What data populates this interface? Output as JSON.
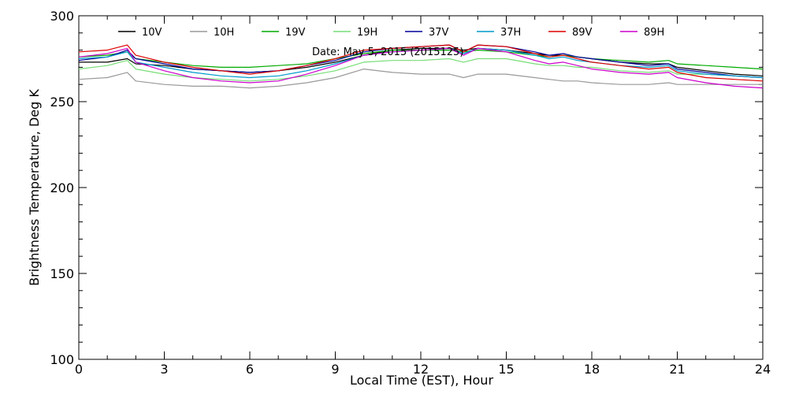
{
  "chart_data": {
    "type": "line",
    "title": "",
    "xlabel": "Local Time (EST), Hour",
    "ylabel": "Brightness Temperature, Deg K",
    "annotation": "Date: May 5, 2015 (2015125)",
    "xlim": [
      0,
      24
    ],
    "ylim": [
      100,
      300
    ],
    "x_ticks": [
      0,
      3,
      6,
      9,
      12,
      15,
      18,
      21,
      24
    ],
    "y_ticks": [
      100,
      150,
      200,
      250,
      300
    ],
    "grid": false,
    "legend_placement": "top",
    "x": [
      0,
      1,
      1.7,
      2,
      3,
      4,
      5,
      6,
      7,
      8,
      9,
      10,
      11,
      12,
      13,
      13.5,
      14,
      15,
      16,
      16.5,
      17,
      17.5,
      18,
      19,
      20,
      20.7,
      21,
      22,
      23,
      24
    ],
    "series": [
      {
        "name": "10V",
        "color": "#000000",
        "values": [
          273,
          273,
          275,
          272,
          271,
          269,
          268,
          267,
          268,
          270,
          273,
          277,
          280,
          281,
          281,
          280,
          281,
          280,
          278,
          277,
          277,
          276,
          275,
          273,
          272,
          272,
          270,
          268,
          266,
          265
        ]
      },
      {
        "name": "10H",
        "color": "#999999",
        "values": [
          263,
          264,
          267,
          262,
          260,
          259,
          259,
          258,
          259,
          261,
          264,
          269,
          267,
          266,
          266,
          264,
          266,
          266,
          264,
          263,
          262,
          262,
          261,
          260,
          260,
          261,
          260,
          260,
          260,
          260
        ]
      },
      {
        "name": "19V",
        "color": "#00aa00",
        "values": [
          276,
          277,
          279,
          275,
          273,
          271,
          270,
          270,
          271,
          272,
          275,
          278,
          280,
          280,
          280,
          279,
          280,
          279,
          277,
          276,
          277,
          276,
          275,
          274,
          273,
          274,
          272,
          271,
          270,
          269
        ]
      },
      {
        "name": "19H",
        "color": "#77dd77",
        "values": [
          269,
          271,
          274,
          269,
          266,
          264,
          263,
          262,
          263,
          265,
          268,
          273,
          274,
          274,
          275,
          273,
          275,
          275,
          272,
          271,
          271,
          270,
          270,
          268,
          267,
          268,
          266,
          266,
          265,
          264
        ]
      },
      {
        "name": "37V",
        "color": "#000099",
        "values": [
          274,
          276,
          280,
          275,
          272,
          269,
          268,
          267,
          268,
          271,
          274,
          279,
          281,
          282,
          283,
          279,
          283,
          282,
          279,
          277,
          278,
          276,
          275,
          273,
          271,
          272,
          269,
          267,
          265,
          264
        ]
      },
      {
        "name": "37H",
        "color": "#0099cc",
        "values": [
          275,
          276,
          279,
          273,
          270,
          267,
          265,
          264,
          265,
          268,
          272,
          277,
          279,
          280,
          281,
          278,
          281,
          280,
          277,
          275,
          276,
          274,
          273,
          271,
          270,
          271,
          268,
          266,
          265,
          264
        ]
      },
      {
        "name": "89V",
        "color": "#dd0000",
        "values": [
          279,
          280,
          283,
          277,
          273,
          270,
          268,
          266,
          268,
          271,
          275,
          280,
          281,
          282,
          283,
          279,
          283,
          282,
          278,
          276,
          277,
          275,
          273,
          271,
          269,
          270,
          267,
          264,
          263,
          262
        ]
      },
      {
        "name": "89H",
        "color": "#cc00cc",
        "values": [
          276,
          278,
          281,
          273,
          268,
          264,
          262,
          261,
          262,
          266,
          271,
          277,
          279,
          280,
          281,
          277,
          281,
          279,
          274,
          272,
          273,
          271,
          269,
          267,
          266,
          267,
          264,
          261,
          259,
          258
        ]
      }
    ]
  }
}
